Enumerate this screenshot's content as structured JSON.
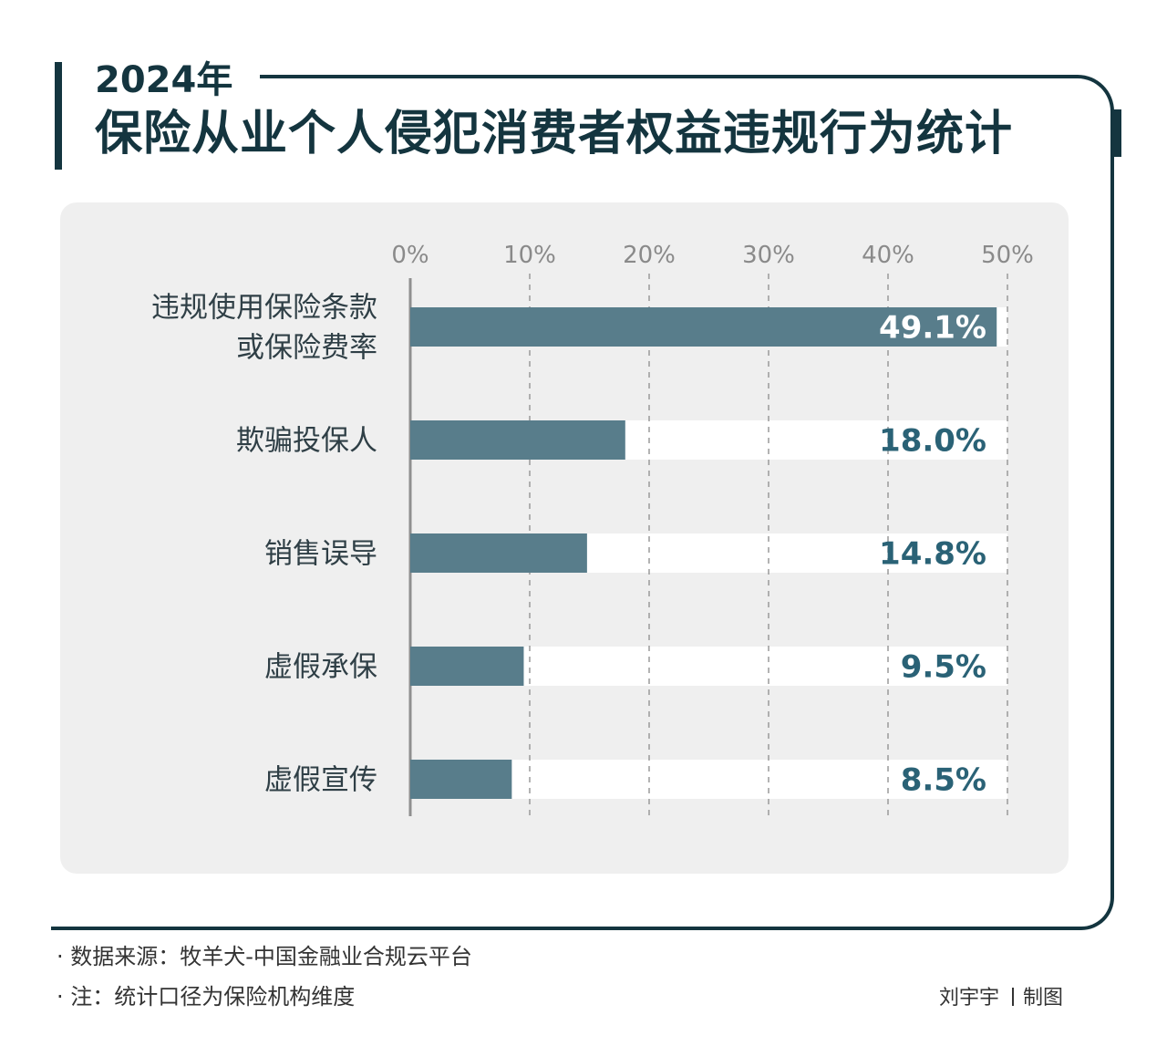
{
  "header": {
    "year": "2024年",
    "title": "保险从业个人侵犯消费者权益违规行为统计"
  },
  "chart_data": {
    "type": "bar",
    "orientation": "horizontal",
    "title": "保险从业个人侵犯消费者权益违规行为统计",
    "categories": [
      [
        "违规使用保险条款",
        "或保险费率"
      ],
      [
        "欺骗投保人"
      ],
      [
        "销售误导"
      ],
      [
        "虚假承保"
      ],
      [
        "虚假宣传"
      ]
    ],
    "values": [
      49.1,
      18.0,
      14.8,
      9.5,
      8.5
    ],
    "value_labels": [
      "49.1%",
      "18.0%",
      "14.8%",
      "9.5%",
      "8.5%"
    ],
    "xlim": [
      0,
      50
    ],
    "x_ticks": [
      0,
      10,
      20,
      30,
      40,
      50
    ],
    "x_tick_labels": [
      "0%",
      "10%",
      "20%",
      "30%",
      "40%",
      "50%"
    ],
    "grid": "dashed vertical",
    "axis_position": "top",
    "colors": {
      "bar": "#587d8b",
      "track": "#ffffff",
      "label_on_bar": "#ffffff",
      "label_on_track": "#2a6276",
      "grid": "#9a9a9a",
      "category_text": "#2f3f46",
      "tick_text": "#8a8a8a"
    }
  },
  "footer": {
    "source": "· 数据来源：牧羊犬-中国金融业合规云平台",
    "note": "· 注：统计口径为保险机构维度",
    "credit_name": "刘宇宇",
    "credit_role": "制图"
  }
}
